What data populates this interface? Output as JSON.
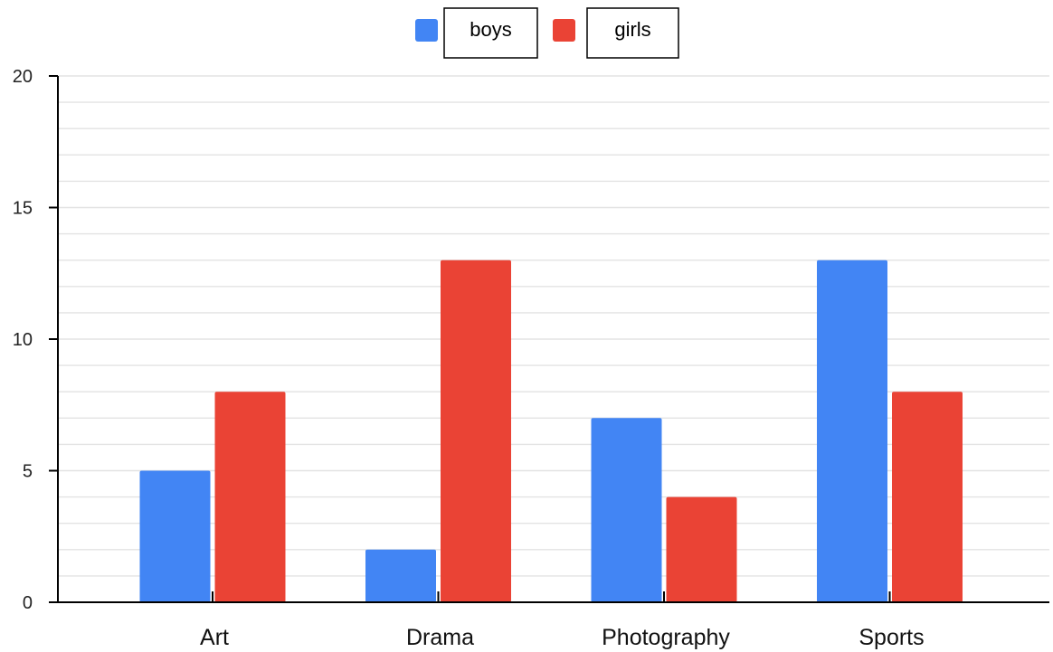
{
  "chart_data": {
    "type": "bar",
    "categories": [
      "Art",
      "Drama",
      "Photography",
      "Sports"
    ],
    "series": [
      {
        "name": "boys",
        "values": [
          5,
          2,
          7,
          13
        ],
        "color": "#4285F4"
      },
      {
        "name": "girls",
        "values": [
          8,
          13,
          4,
          8
        ],
        "color": "#EA4335"
      }
    ],
    "yticks": [
      "0",
      "5",
      "10",
      "15",
      "20"
    ],
    "ylim": [
      0,
      20
    ],
    "minor_grid_step": 1,
    "grid": true,
    "legend_position": "top-center",
    "xlabel": "",
    "ylabel": "",
    "title": ""
  }
}
